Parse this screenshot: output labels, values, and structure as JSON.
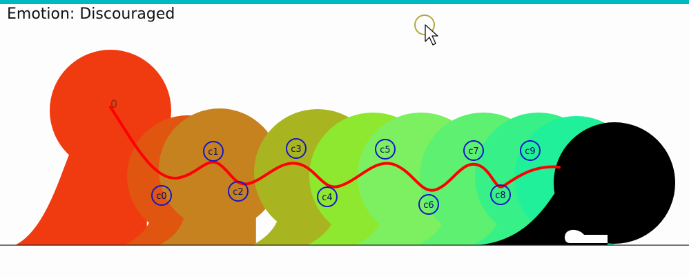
{
  "emotion": {
    "prefix": "Emotion:",
    "value": "Discouraged",
    "text": "Emotion: Discouraged"
  },
  "colors": {
    "accent": "#00b8c0",
    "ground": "#222222",
    "curve": "#ff0000",
    "control_ring": "#1515c8",
    "blob_palette": [
      "#f03a10",
      "#e05510",
      "#c78220",
      "#a9b520",
      "#8ee830",
      "#7cf060",
      "#5ef070",
      "#38f088",
      "#20f09a",
      "#000000"
    ]
  },
  "anchor_label": "0",
  "control_labels": [
    "c0",
    "c1",
    "c2",
    "c3",
    "c4",
    "c5",
    "c6",
    "c7",
    "c8",
    "c9"
  ],
  "cursor": {
    "icon": "pointer-arrow-icon",
    "highlight": "click-ring-icon"
  }
}
